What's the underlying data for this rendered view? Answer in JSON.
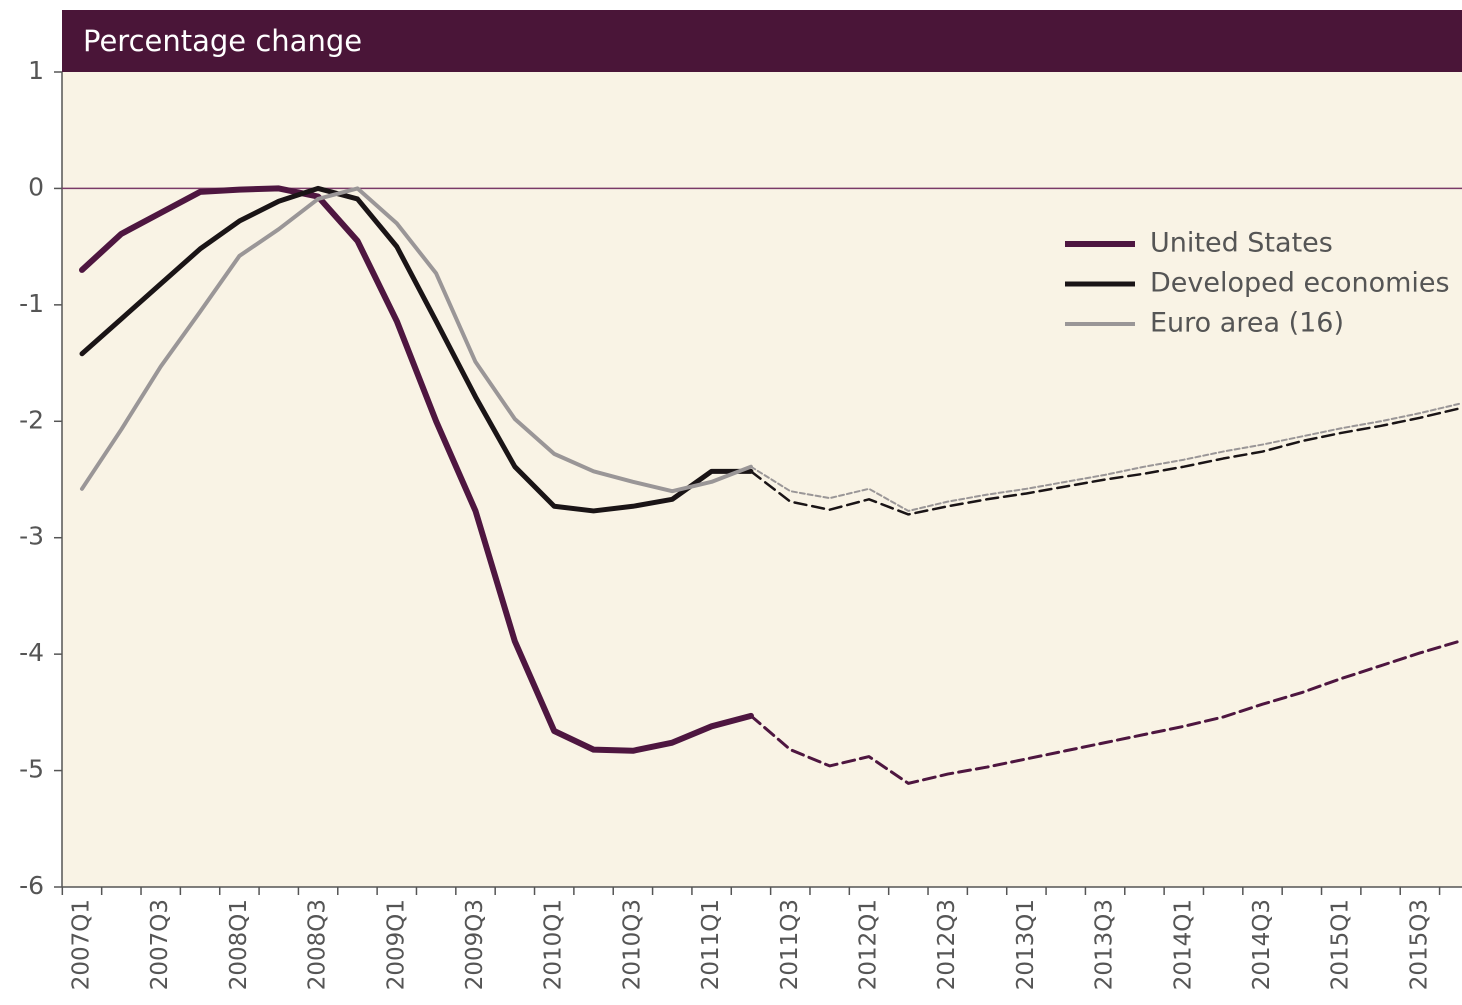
{
  "chart_data": {
    "type": "line",
    "title": "Percentage change",
    "categories": [
      "2007Q1",
      null,
      "2007Q3",
      null,
      "2008Q1",
      null,
      "2008Q3",
      null,
      "2009Q1",
      null,
      "2009Q3",
      null,
      "2010Q1",
      null,
      "2010Q3",
      null,
      "2011Q1",
      null,
      "2011Q3",
      null,
      "2012Q1",
      null,
      "2012Q3",
      null,
      "2013Q1",
      null,
      "2013Q3",
      null,
      "2014Q1",
      null,
      "2014Q3",
      null,
      "2015Q1",
      null,
      "2015Q3",
      null
    ],
    "dashed_after": 17,
    "series": [
      {
        "name": "United States",
        "color": "#4e1640",
        "width": 6,
        "values": [
          -0.7,
          -0.39,
          -0.21,
          -0.03,
          -0.01,
          0,
          -0.07,
          -0.45,
          -1.14,
          -2.0,
          -2.77,
          -3.89,
          -4.66,
          -4.82,
          -4.83,
          -4.76,
          -4.62,
          -4.53,
          -4.82,
          -4.96,
          -4.88,
          -5.11,
          -5.03,
          -4.97,
          -4.9,
          -4.83,
          -4.76,
          -4.69,
          -4.62,
          -4.54,
          -4.43,
          -4.33,
          -4.21,
          -4.1,
          -3.99,
          -3.89
        ]
      },
      {
        "name": "Developed economies",
        "color": "#1a1416",
        "width": 5,
        "values": [
          -1.42,
          -1.12,
          -0.82,
          -0.52,
          -0.28,
          -0.11,
          0,
          -0.09,
          -0.5,
          -1.14,
          -1.79,
          -2.39,
          -2.73,
          -2.77,
          -2.73,
          -2.67,
          -2.43,
          -2.43,
          -2.69,
          -2.76,
          -2.67,
          -2.8,
          -2.73,
          -2.67,
          -2.62,
          -2.56,
          -2.5,
          -2.45,
          -2.39,
          -2.32,
          -2.26,
          -2.17,
          -2.1,
          -2.04,
          -1.97,
          -1.89
        ]
      },
      {
        "name": "Euro area (16)",
        "color": "#9a9697",
        "width": 4,
        "values": [
          -2.58,
          -2.07,
          -1.53,
          -1.06,
          -0.58,
          -0.35,
          -0.09,
          0,
          -0.3,
          -0.73,
          -1.49,
          -1.98,
          -2.28,
          -2.43,
          -2.52,
          -2.6,
          -2.52,
          -2.39,
          -2.6,
          -2.66,
          -2.58,
          -2.77,
          -2.69,
          -2.63,
          -2.58,
          -2.52,
          -2.46,
          -2.39,
          -2.33,
          -2.26,
          -2.2,
          -2.13,
          -2.06,
          -2.0,
          -1.93,
          -1.85
        ]
      }
    ],
    "ylim": [
      -6,
      1
    ],
    "yticks": [
      -6,
      -5,
      -4,
      -3,
      -2,
      -1,
      0,
      1
    ],
    "zero_line": true
  }
}
